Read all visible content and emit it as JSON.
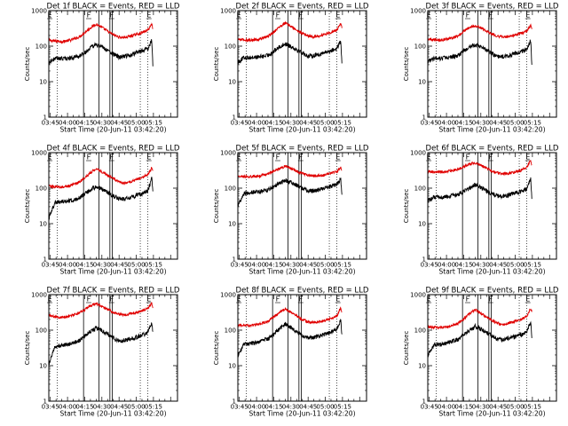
{
  "chart_data": {
    "type": "line",
    "shared": {
      "xlabel": "Start Time (20-Jun-11 03:42:20)",
      "ylabel": "Counts/sec",
      "x_range_min": [
        223.667,
        336.0
      ],
      "x_ticks": [
        {
          "t": 225,
          "label": "03:45"
        },
        {
          "t": 240,
          "label": "04:00"
        },
        {
          "t": 255,
          "label": "04:15"
        },
        {
          "t": 270,
          "label": "04:30"
        },
        {
          "t": 285,
          "label": "04:45"
        },
        {
          "t": 300,
          "label": "05:00"
        },
        {
          "t": 315,
          "label": "05:15"
        }
      ],
      "y_scale": "log",
      "y_range": [
        1,
        1000
      ],
      "y_ticks": [
        {
          "v": 1,
          "label": "1"
        },
        {
          "v": 10,
          "label": "10"
        },
        {
          "v": 100,
          "label": "100"
        },
        {
          "v": 1000,
          "label": "1000"
        }
      ],
      "series_names": [
        "Events",
        "LLD"
      ],
      "series_colors": {
        "events": "#000000",
        "lld": "#e00000"
      },
      "x_sample_times": [
        224,
        229,
        235,
        242,
        250,
        255,
        260,
        265,
        270,
        275,
        280,
        285,
        290,
        297,
        305,
        310,
        313.5,
        314.5
      ]
    },
    "panels": [
      {
        "title": "Det 1f BLACK = Events, RED = LLD",
        "events": [
          35,
          45,
          45,
          46,
          52,
          65,
          90,
          112,
          95,
          75,
          60,
          48,
          52,
          60,
          75,
          85,
          145,
          30
        ],
        "lld": [
          145,
          140,
          135,
          145,
          180,
          240,
          330,
          420,
          340,
          260,
          210,
          180,
          175,
          200,
          240,
          280,
          420,
          320
        ],
        "flags": [
          {
            "t": 224.5,
            "label": "E"
          },
          {
            "t": 258.5,
            "label": "F"
          },
          {
            "t": 278.5,
            "label": "F"
          },
          {
            "t": 311,
            "label": "E"
          }
        ],
        "solid_lines": [
          254,
          267.5,
          277,
          279
        ],
        "dotted_lines": [
          231,
          303.5,
          310
        ]
      },
      {
        "title": "Det 2f BLACK = Events, RED = LLD",
        "events": [
          36,
          48,
          48,
          50,
          55,
          72,
          95,
          118,
          100,
          80,
          65,
          52,
          55,
          62,
          75,
          85,
          140,
          30
        ],
        "lld": [
          155,
          150,
          148,
          155,
          190,
          250,
          350,
          450,
          360,
          280,
          230,
          195,
          185,
          205,
          245,
          290,
          430,
          330
        ],
        "flags": [
          {
            "t": 224.5,
            "label": "E"
          },
          {
            "t": 258.5,
            "label": "F"
          },
          {
            "t": 278.5,
            "label": "F"
          },
          {
            "t": 311,
            "label": "E"
          }
        ],
        "solid_lines": [
          254,
          267.5,
          277,
          279
        ],
        "dotted_lines": [
          231,
          303.5,
          310
        ]
      },
      {
        "title": "Det 3f BLACK = Events, RED = LLD",
        "events": [
          38,
          45,
          45,
          48,
          55,
          72,
          95,
          112,
          95,
          78,
          62,
          50,
          52,
          58,
          70,
          80,
          150,
          30
        ],
        "lld": [
          160,
          155,
          150,
          160,
          195,
          260,
          340,
          380,
          330,
          270,
          220,
          190,
          180,
          195,
          230,
          265,
          390,
          300
        ],
        "flags": [
          {
            "t": 224.5,
            "label": "E"
          },
          {
            "t": 258.5,
            "label": "F"
          },
          {
            "t": 278.5,
            "label": "F"
          },
          {
            "t": 311,
            "label": "E"
          }
        ],
        "solid_lines": [
          254,
          267.5,
          277,
          279
        ],
        "dotted_lines": [
          231,
          303.5,
          310
        ]
      },
      {
        "title": "Det 4f BLACK = Events, RED = LLD",
        "events": [
          15,
          40,
          42,
          45,
          52,
          70,
          90,
          112,
          95,
          75,
          60,
          50,
          50,
          58,
          70,
          85,
          185,
          90
        ],
        "lld": [
          115,
          110,
          108,
          115,
          145,
          200,
          270,
          360,
          290,
          230,
          185,
          150,
          140,
          160,
          200,
          240,
          380,
          300
        ],
        "flags": [
          {
            "t": 224.5,
            "label": "E"
          },
          {
            "t": 258.5,
            "label": "F"
          },
          {
            "t": 278.5,
            "label": "F"
          },
          {
            "t": 311,
            "label": "E"
          }
        ],
        "solid_lines": [
          254,
          267.5,
          277,
          279
        ],
        "dotted_lines": [
          231,
          303.5,
          310
        ]
      },
      {
        "title": "Det 5f BLACK = Events, RED = LLD",
        "events": [
          35,
          70,
          75,
          80,
          90,
          110,
          140,
          170,
          145,
          120,
          100,
          85,
          85,
          95,
          110,
          125,
          180,
          60
        ],
        "lld": [
          215,
          210,
          210,
          220,
          250,
          300,
          360,
          420,
          360,
          300,
          260,
          230,
          220,
          230,
          260,
          290,
          380,
          300
        ],
        "flags": [
          {
            "t": 224.5,
            "label": "E"
          },
          {
            "t": 258.5,
            "label": "F"
          },
          {
            "t": 278.5,
            "label": "F"
          },
          {
            "t": 311,
            "label": "E"
          }
        ],
        "solid_lines": [
          254,
          267.5,
          277,
          279
        ],
        "dotted_lines": [
          231,
          303.5,
          310
        ]
      },
      {
        "title": "Det 6f BLACK = Events, RED = LLD",
        "events": [
          45,
          55,
          55,
          58,
          65,
          80,
          100,
          125,
          105,
          85,
          70,
          60,
          60,
          68,
          80,
          95,
          190,
          50
        ],
        "lld": [
          300,
          290,
          285,
          300,
          340,
          400,
          480,
          520,
          440,
          360,
          300,
          265,
          255,
          270,
          320,
          380,
          600,
          430
        ],
        "flags": [
          {
            "t": 224.5,
            "label": "E"
          },
          {
            "t": 258.5,
            "label": "F"
          },
          {
            "t": 278.5,
            "label": "F"
          },
          {
            "t": 311,
            "label": "E"
          }
        ],
        "solid_lines": [
          254,
          267.5,
          277,
          279
        ],
        "dotted_lines": [
          231,
          303.5,
          310
        ]
      },
      {
        "title": "Det 7f BLACK = Events, RED = LLD",
        "events": [
          12,
          35,
          38,
          42,
          50,
          68,
          92,
          115,
          98,
          78,
          60,
          50,
          52,
          60,
          72,
          85,
          150,
          100
        ],
        "lld": [
          260,
          240,
          230,
          250,
          300,
          380,
          500,
          560,
          470,
          380,
          320,
          280,
          270,
          300,
          350,
          420,
          560,
          450
        ],
        "flags": [
          {
            "t": 224.5,
            "label": "E"
          },
          {
            "t": 258.5,
            "label": "F"
          },
          {
            "t": 278.5,
            "label": "F"
          },
          {
            "t": 311,
            "label": "E"
          }
        ],
        "solid_lines": [
          254,
          267.5,
          277,
          279
        ],
        "dotted_lines": [
          231,
          303.5,
          310
        ]
      },
      {
        "title": "Det 8f BLACK = Events, RED = LLD",
        "events": [
          20,
          40,
          42,
          48,
          58,
          78,
          110,
          150,
          120,
          92,
          72,
          60,
          62,
          72,
          88,
          105,
          200,
          70
        ],
        "lld": [
          140,
          135,
          135,
          145,
          180,
          240,
          320,
          400,
          320,
          250,
          200,
          170,
          165,
          180,
          215,
          250,
          420,
          330
        ],
        "flags": [
          {
            "t": 224.5,
            "label": "E"
          },
          {
            "t": 258.5,
            "label": "F"
          },
          {
            "t": 278.5,
            "label": "F"
          },
          {
            "t": 311,
            "label": "E"
          }
        ],
        "solid_lines": [
          254,
          267.5,
          277,
          279
        ],
        "dotted_lines": [
          231,
          303.5,
          310
        ]
      },
      {
        "title": "Det 9f BLACK = Events, RED = LLD",
        "events": [
          20,
          38,
          40,
          45,
          55,
          72,
          100,
          130,
          108,
          85,
          68,
          55,
          55,
          62,
          75,
          90,
          175,
          60
        ],
        "lld": [
          125,
          120,
          118,
          125,
          155,
          210,
          290,
          380,
          305,
          235,
          185,
          155,
          148,
          165,
          200,
          240,
          420,
          330
        ],
        "flags": [
          {
            "t": 224.5,
            "label": "E"
          },
          {
            "t": 258.5,
            "label": "F"
          },
          {
            "t": 278.5,
            "label": "F"
          },
          {
            "t": 311,
            "label": "E"
          }
        ],
        "solid_lines": [
          254,
          267.5,
          277,
          279
        ],
        "dotted_lines": [
          231,
          303.5,
          310
        ]
      }
    ]
  }
}
